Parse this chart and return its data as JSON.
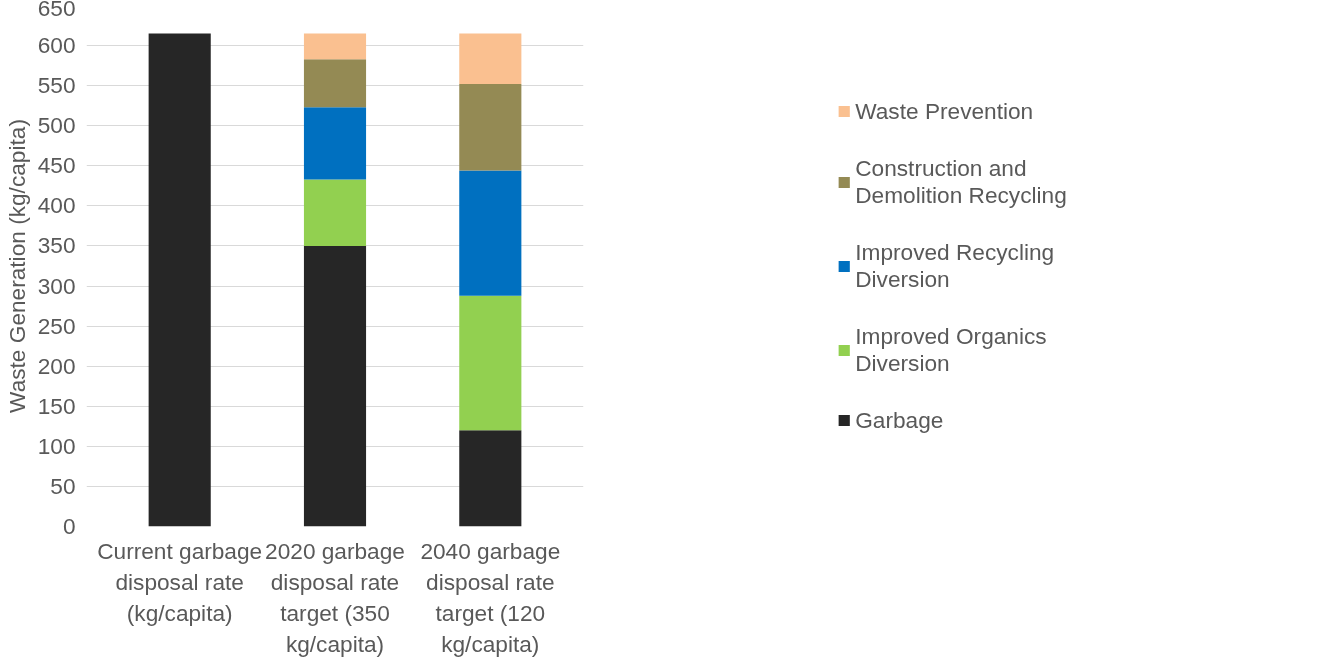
{
  "chart_data": {
    "type": "bar",
    "stacked": true,
    "ylabel": "Waste Generation (kg/capita)",
    "categories": [
      "Current garbage disposal rate (kg/capita)",
      "2020 garbage disposal rate target (350 kg/capita)",
      "2040 garbage disposal rate target (120 kg/capita)"
    ],
    "series": [
      {
        "name": "Garbage",
        "color": "#262626",
        "values": [
          615,
          350,
          120
        ]
      },
      {
        "name": "Improved Organics Diversion",
        "color": "#92d050",
        "values": [
          null,
          83,
          168
        ]
      },
      {
        "name": "Improved Recycling Diversion",
        "color": "#0070c0",
        "values": [
          null,
          90,
          156
        ]
      },
      {
        "name": "Construction and Demolition Recycling",
        "color": "#948a54",
        "values": [
          null,
          60,
          108
        ]
      },
      {
        "name": "Waste Prevention",
        "color": "#fac090",
        "values": [
          null,
          32,
          63
        ]
      }
    ],
    "ylim": [
      0,
      650
    ],
    "yticks": [
      0,
      50,
      100,
      150,
      200,
      250,
      300,
      350,
      400,
      450,
      500,
      550,
      600,
      650
    ],
    "grid": "y",
    "legend": "right"
  }
}
